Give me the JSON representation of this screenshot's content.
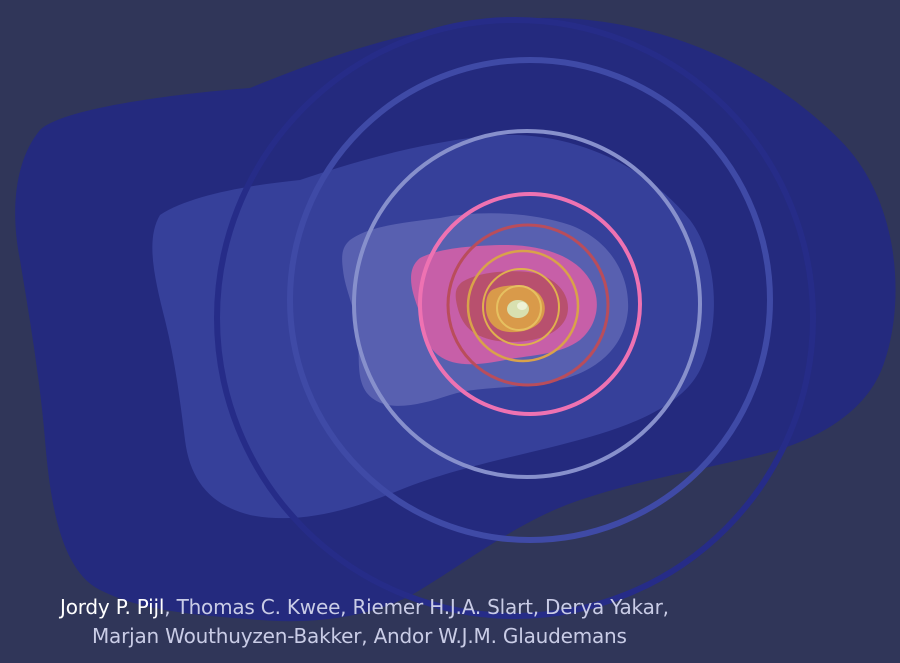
{
  "colors": {
    "background": "#303659",
    "outer_blob": "#242a7e",
    "mid_blob": "#36409a",
    "inner_blob": "#5860b0",
    "pink_blob": "#c75fa8",
    "red_blob": "#b8506e",
    "amber_blob": "#d99a4a",
    "core": "#d8e0b0",
    "ring_dark": "#262c88",
    "ring_blue": "#3f4aa6",
    "ring_lavender": "#8790cc",
    "ring_pink": "#ee72b2",
    "ring_red": "#b94d5b",
    "ring_gold": "#d9a24a",
    "author_text": "#c9cce6",
    "author_lead_text": "#ffffff"
  },
  "authors": {
    "lead": "Jordy P. Pijl",
    "line1_rest": ", Thomas C. Kwee, Riemer H.J.A. Slart, Derya Yakar,",
    "line2": "Marjan Wouthuyzen-Bakker, Andor W.J.M. Glaudemans"
  }
}
